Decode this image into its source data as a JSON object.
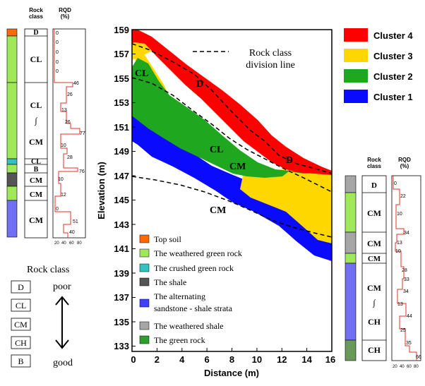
{
  "left_log": {
    "header_rock_class": "Rock\nclass",
    "header_rqd": "RQD\n(%)",
    "classes": [
      "D",
      "CL",
      "CL",
      "∫",
      "CM",
      "CL",
      "B",
      "CM",
      "CM",
      "CM"
    ],
    "rqd_labels": [
      "0",
      "0",
      "0",
      "0",
      "0",
      "46",
      "26",
      "13",
      "26",
      "77",
      "10",
      "28",
      "76",
      "10",
      "12",
      "0",
      "51",
      "40"
    ],
    "rqd_axis": [
      "20",
      "40",
      "60",
      "80"
    ]
  },
  "right_log": {
    "header_rock_class": "Rock\nclass",
    "header_rqd": "RQD\n(%)",
    "classes": [
      "D",
      "CM",
      "CM",
      "CM",
      "CM",
      "∫",
      "CH",
      "CH"
    ],
    "rqd_labels": [
      "0",
      "22",
      "10",
      "34",
      "13",
      "10",
      "28",
      "33",
      "34",
      "13",
      "44",
      "25",
      "35",
      "66"
    ],
    "rqd_axis": [
      "20",
      "40",
      "60",
      "80"
    ]
  },
  "rock_class_scale": {
    "title": "Rock class",
    "classes": [
      "D",
      "CL",
      "CM",
      "CH",
      "B"
    ],
    "poor": "poor",
    "good": "good"
  },
  "main_plot": {
    "y_label": "Elevation (m)",
    "x_label": "Distance (m)",
    "y_ticks": [
      "159",
      "157",
      "155",
      "153",
      "151",
      "149",
      "147",
      "145",
      "143",
      "141",
      "139",
      "137",
      "135",
      "133"
    ],
    "x_ticks": [
      "0",
      "2",
      "4",
      "6",
      "8",
      "10",
      "12",
      "14",
      "16"
    ],
    "division_label_line1": "Rock class",
    "division_label_line2": "division line",
    "section_labels": [
      "CL",
      "D",
      "CL",
      "CM",
      "D",
      "CM"
    ]
  },
  "cluster_legend": [
    {
      "label": "Cluster 4",
      "color": "#ff0000"
    },
    {
      "label": "Cluster 3",
      "color": "#ffd700"
    },
    {
      "label": "Cluster 2",
      "color": "#1fa81f"
    },
    {
      "label": "Cluster 1",
      "color": "#0a0aff"
    }
  ],
  "geology_legend": [
    {
      "label": "Top soil",
      "color": "#ff6a00"
    },
    {
      "label": "The weathered green rock",
      "color": "#9ee85a"
    },
    {
      "label": "The crushed green rock",
      "color": "#33c2c2"
    },
    {
      "label": "The shale",
      "color": "#555555"
    },
    {
      "label": "The alternating",
      "label2": "sandstone - shale strata",
      "color": "#4040ff"
    },
    {
      "label": "The weathered shale",
      "color": "#a6a6a6"
    },
    {
      "label": "The green rock",
      "color": "#2f9e2f"
    }
  ]
}
